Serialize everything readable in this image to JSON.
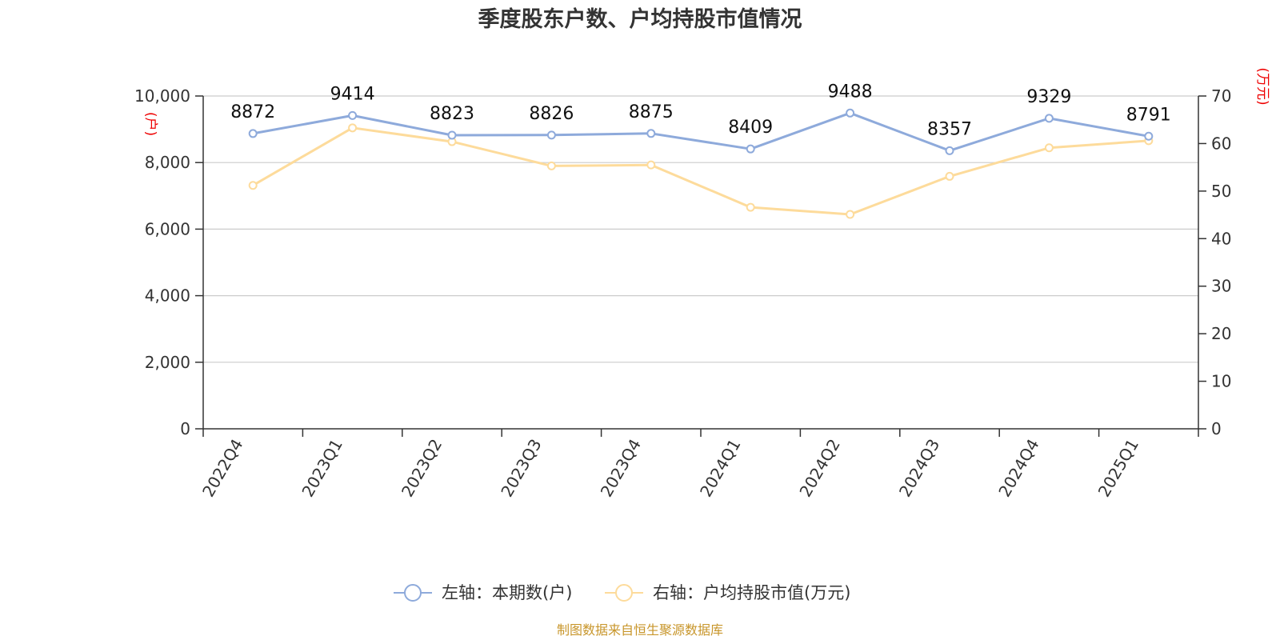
{
  "chart_data": {
    "type": "line",
    "title": "季度股东户数、户均持股市值情况",
    "categories": [
      "2022Q4",
      "2023Q1",
      "2023Q2",
      "2023Q3",
      "2023Q4",
      "2024Q1",
      "2024Q2",
      "2024Q3",
      "2024Q4",
      "2025Q1"
    ],
    "y_left": {
      "unit": "(户)",
      "range": [
        0,
        10000
      ],
      "ticks": [
        "0",
        "2,000",
        "4,000",
        "6,000",
        "8,000",
        "10,000"
      ],
      "tick_values": [
        0,
        2000,
        4000,
        6000,
        8000,
        10000
      ]
    },
    "y_right": {
      "unit": "(万元)",
      "range": [
        0,
        70
      ],
      "ticks": [
        "0",
        "10",
        "20",
        "30",
        "40",
        "50",
        "60",
        "70"
      ],
      "tick_values": [
        0,
        10,
        20,
        30,
        40,
        50,
        60,
        70
      ]
    },
    "series": [
      {
        "name": "左轴：本期数(户)",
        "axis": "left",
        "color": "#8eaadb",
        "values": [
          8872,
          9414,
          8823,
          8826,
          8875,
          8409,
          9488,
          8357,
          9329,
          8791
        ],
        "labels": [
          "8872",
          "9414",
          "8823",
          "8826",
          "8875",
          "8409",
          "9488",
          "8357",
          "9329",
          "8791"
        ]
      },
      {
        "name": "右轴：户均持股市值(万元)",
        "axis": "right",
        "color": "#fddb9b",
        "values": [
          51.2,
          63.3,
          60.4,
          55.3,
          55.5,
          46.6,
          45.1,
          53.1,
          59.1,
          60.6
        ]
      }
    ],
    "grid": true,
    "legend": "bottom-center",
    "source": "制图数据来自恒生聚源数据库"
  }
}
